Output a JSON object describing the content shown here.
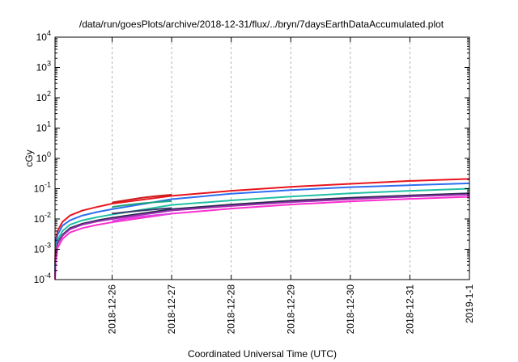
{
  "chart_data": {
    "type": "line",
    "title": "/data/run/goesPlots/archive/2018-12-31/flux/../bryn/7daysEarthDataAccumulated.plot",
    "xlabel": "Coordinated Universal Time (UTC)",
    "ylabel": "cGy",
    "y_scale": "log",
    "ylim": [
      0.0001,
      10000
    ],
    "xlim": [
      "2018-12-25T01:00",
      "2019-01-01T00:00"
    ],
    "grid": "on (dashed gray, at x ticks)",
    "legend": "none",
    "y_tick_values": [
      0.0001,
      0.001,
      0.01,
      0.1,
      1,
      10,
      100,
      1000,
      10000
    ],
    "y_tick_labels": [
      {
        "base": "10",
        "exp": "-4"
      },
      {
        "base": "10",
        "exp": "-3"
      },
      {
        "base": "10",
        "exp": "-2"
      },
      {
        "base": "10",
        "exp": "-1"
      },
      {
        "base": "10",
        "exp": "0"
      },
      {
        "base": "10",
        "exp": "1"
      },
      {
        "base": "10",
        "exp": "2"
      },
      {
        "base": "10",
        "exp": "3"
      },
      {
        "base": "10",
        "exp": "4"
      }
    ],
    "x_ticks": [
      {
        "x": "2018-12-26T00:00",
        "label": "2018-12-26"
      },
      {
        "x": "2018-12-27T00:00",
        "label": "2018-12-27"
      },
      {
        "x": "2018-12-28T00:00",
        "label": "2018-12-28"
      },
      {
        "x": "2018-12-29T00:00",
        "label": "2018-12-29"
      },
      {
        "x": "2018-12-30T00:00",
        "label": "2018-12-30"
      },
      {
        "x": "2018-12-31T00:00",
        "label": "2018-12-31"
      },
      {
        "x": "2019-01-01T00:00",
        "label": "2019-1-1"
      }
    ],
    "series": [
      {
        "color": "#e8141c",
        "x": [
          "2018-12-25T01:00",
          "2018-12-25T01:15",
          "2018-12-25T02:00",
          "2018-12-25T04:00",
          "2018-12-25T07:00",
          "2018-12-25T12:00",
          "2018-12-25T18:00",
          "2018-12-26T00:00",
          "2018-12-27T00:00",
          "2018-12-28T00:00",
          "2018-12-29T00:00",
          "2018-12-30T00:00",
          "2018-12-31T00:00",
          "2019-01-01T00:00"
        ],
        "values": [
          0.0003,
          0.0018,
          0.004,
          0.008,
          0.013,
          0.019,
          0.025,
          0.032,
          0.058,
          0.085,
          0.115,
          0.145,
          0.18,
          0.21
        ]
      },
      {
        "color": "#2d6ef0",
        "x": [
          "2018-12-25T01:00",
          "2018-12-25T01:15",
          "2018-12-25T02:00",
          "2018-12-25T04:00",
          "2018-12-25T07:00",
          "2018-12-25T12:00",
          "2018-12-25T18:00",
          "2018-12-26T00:00",
          "2018-12-27T00:00",
          "2018-12-28T00:00",
          "2018-12-29T00:00",
          "2018-12-30T00:00",
          "2018-12-31T00:00",
          "2019-01-01T00:00"
        ],
        "values": [
          0.0002,
          0.0012,
          0.003,
          0.006,
          0.009,
          0.013,
          0.017,
          0.021,
          0.045,
          0.068,
          0.09,
          0.112,
          0.13,
          0.15
        ]
      },
      {
        "color": "#21c0a4",
        "x": [
          "2018-12-25T01:00",
          "2018-12-25T01:15",
          "2018-12-25T02:00",
          "2018-12-25T04:00",
          "2018-12-25T07:00",
          "2018-12-25T12:00",
          "2018-12-25T18:00",
          "2018-12-26T00:00",
          "2018-12-27T00:00",
          "2018-12-28T00:00",
          "2018-12-29T00:00",
          "2018-12-30T00:00",
          "2018-12-31T00:00",
          "2019-01-01T00:00"
        ],
        "values": [
          0.00015,
          0.0008,
          0.002,
          0.004,
          0.0065,
          0.009,
          0.0115,
          0.014,
          0.029,
          0.041,
          0.055,
          0.07,
          0.085,
          0.1
        ]
      },
      {
        "color": "#2b2b4f",
        "x": [
          "2018-12-25T01:00",
          "2018-12-25T01:15",
          "2018-12-25T02:00",
          "2018-12-25T04:00",
          "2018-12-25T07:00",
          "2018-12-25T12:00",
          "2018-12-25T18:00",
          "2018-12-26T00:00",
          "2018-12-27T00:00",
          "2018-12-28T00:00",
          "2018-12-29T00:00",
          "2018-12-30T00:00",
          "2018-12-31T00:00",
          "2019-01-01T00:00"
        ],
        "values": [
          0.00012,
          0.0006,
          0.0016,
          0.003,
          0.005,
          0.007,
          0.009,
          0.011,
          0.021,
          0.03,
          0.04,
          0.05,
          0.06,
          0.07
        ]
      },
      {
        "color": "#9b2fb0",
        "x": [
          "2018-12-25T01:00",
          "2018-12-25T01:15",
          "2018-12-25T02:00",
          "2018-12-25T04:00",
          "2018-12-25T07:00",
          "2018-12-25T12:00",
          "2018-12-25T18:00",
          "2018-12-26T00:00",
          "2018-12-27T00:00",
          "2018-12-28T00:00",
          "2018-12-29T00:00",
          "2018-12-30T00:00",
          "2018-12-31T00:00",
          "2019-01-01T00:00"
        ],
        "values": [
          0.00011,
          0.00055,
          0.0015,
          0.0028,
          0.0046,
          0.0065,
          0.0083,
          0.01,
          0.019,
          0.027,
          0.036,
          0.045,
          0.055,
          0.064
        ]
      },
      {
        "color": "#ff2ed0",
        "x": [
          "2018-12-25T01:00",
          "2018-12-25T01:15",
          "2018-12-25T02:00",
          "2018-12-25T04:00",
          "2018-12-25T07:00",
          "2018-12-25T12:00",
          "2018-12-25T18:00",
          "2018-12-26T00:00",
          "2018-12-27T00:00",
          "2018-12-28T00:00",
          "2018-12-29T00:00",
          "2018-12-30T00:00",
          "2018-12-31T00:00",
          "2019-01-01T00:00"
        ],
        "values": [
          0.0001,
          0.0004,
          0.0011,
          0.0022,
          0.0036,
          0.005,
          0.0064,
          0.0078,
          0.015,
          0.022,
          0.03,
          0.038,
          0.046,
          0.054
        ]
      },
      {
        "color": "#c81a1a",
        "x": [
          "2018-12-26T00:00",
          "2018-12-26T06:00",
          "2018-12-26T12:00",
          "2018-12-26T18:00",
          "2018-12-27T00:00"
        ],
        "values": [
          0.035,
          0.042,
          0.05,
          0.057,
          0.063
        ]
      },
      {
        "color": "#1fa37a",
        "x": [
          "2018-12-26T00:00",
          "2018-12-26T06:00",
          "2018-12-26T12:00",
          "2018-12-26T18:00",
          "2018-12-27T00:00"
        ],
        "values": [
          0.025,
          0.029,
          0.033,
          0.036,
          0.039
        ]
      },
      {
        "color": "#3a3a6a",
        "x": [
          "2018-12-26T00:00",
          "2018-12-26T06:00",
          "2018-12-26T12:00",
          "2018-12-26T18:00",
          "2018-12-27T00:00"
        ],
        "values": [
          0.015,
          0.017,
          0.019,
          0.021,
          0.023
        ]
      },
      {
        "color": "#e040e0",
        "x": [
          "2018-12-26T00:00",
          "2018-12-26T06:00",
          "2018-12-26T12:00",
          "2018-12-26T18:00",
          "2018-12-27T00:00"
        ],
        "values": [
          0.0085,
          0.0105,
          0.012,
          0.0135,
          0.0148
        ]
      }
    ]
  }
}
